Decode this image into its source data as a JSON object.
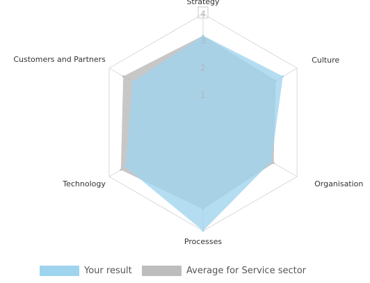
{
  "chart_data": {
    "type": "radar",
    "categories": [
      "Strategy",
      "Culture",
      "Organisation",
      "Processes",
      "Technology",
      "Customers and Partners"
    ],
    "rlim": [
      0,
      4
    ],
    "ticks": [
      "1",
      "2",
      "3",
      "4"
    ],
    "grid": true,
    "legend_position": "bottom",
    "series": [
      {
        "name": "Your result",
        "values": [
          3.2,
          3.4,
          2.9,
          4.0,
          3.3,
          3.0
        ],
        "color": "#9fd4ee"
      },
      {
        "name": "Average for Service sector",
        "values": [
          3.2,
          3.1,
          3.0,
          3.2,
          3.5,
          3.4
        ],
        "color": "#bdbdbd"
      }
    ]
  }
}
